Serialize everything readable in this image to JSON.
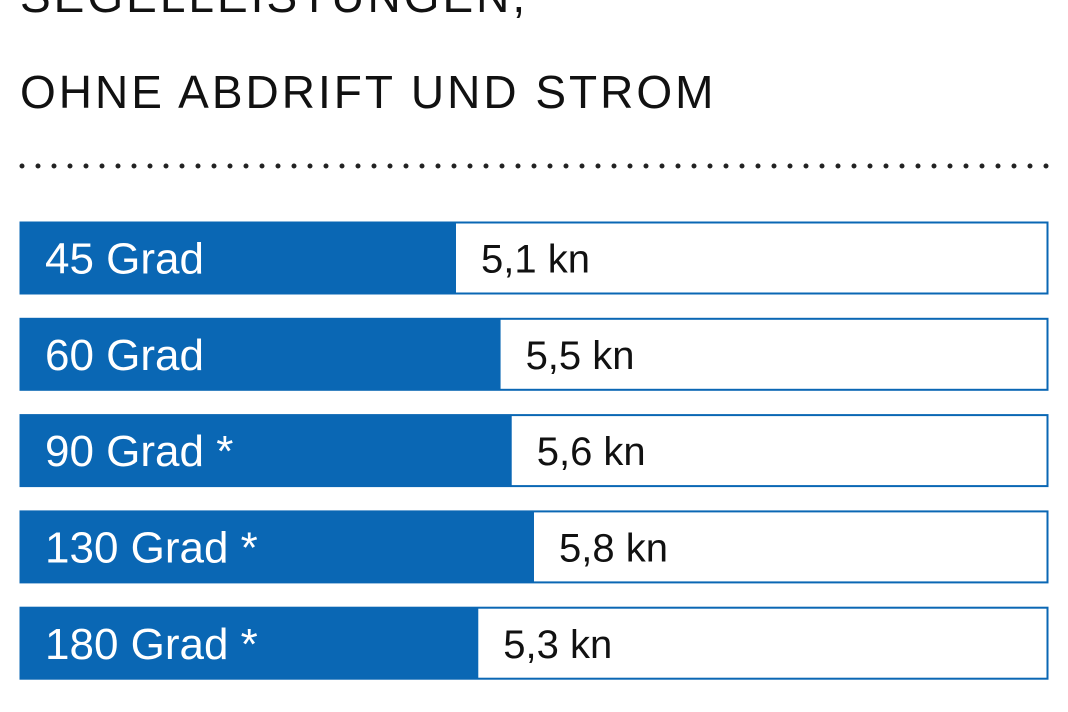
{
  "chart_data": {
    "type": "bar",
    "orientation": "horizontal",
    "title": [
      "SEGELLEISTUNGEN,",
      "OHNE ABDRIFT UND STROM"
    ],
    "categories": [
      "45 Grad",
      "60 Grad",
      "90 Grad *",
      "130 Grad *",
      "180 Grad *"
    ],
    "values": [
      5.1,
      5.5,
      5.6,
      5.8,
      5.3
    ],
    "value_labels": [
      "5,1 kn",
      "5,5 kn",
      "5,6 kn",
      "5,8 kn",
      "5,3 kn"
    ],
    "color": "#0a67b4"
  }
}
